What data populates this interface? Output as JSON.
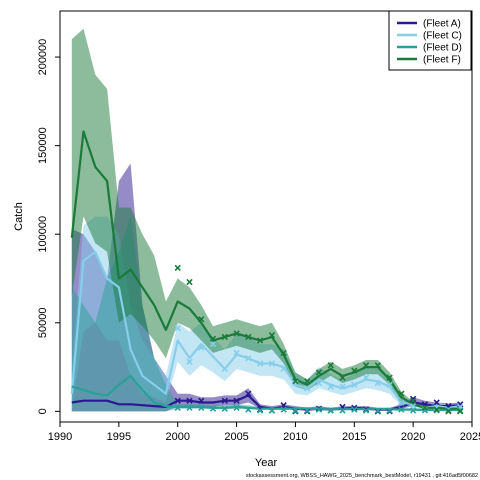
{
  "chart_data": {
    "type": "line",
    "xlabel": "Year",
    "ylabel": "Catch",
    "xlim": [
      1990,
      2025
    ],
    "ylim": [
      -6000,
      226000
    ],
    "xticks": [
      1990,
      1995,
      2000,
      2005,
      2010,
      2015,
      2020,
      2025
    ],
    "yticks": [
      0,
      50000,
      100000,
      150000,
      200000
    ],
    "legend_position": "top-right",
    "footnote": "stockassessment.org, WBSS_HAWG_2025_benchmark_bestModel, r19431 , git:416ad5f00682",
    "series": [
      {
        "name": "(Fleet A)",
        "color": "#2b1a8f",
        "x": [
          1991,
          1992,
          1993,
          1994,
          1995,
          1996,
          1997,
          1998,
          1999,
          2000,
          2001,
          2002,
          2003,
          2004,
          2005,
          2006,
          2007,
          2008,
          2009,
          2010,
          2011,
          2012,
          2013,
          2014,
          2015,
          2016,
          2017,
          2018,
          2019,
          2020,
          2021,
          2022,
          2023,
          2024
        ],
        "values": [
          5000,
          6000,
          6000,
          6000,
          4000,
          4000,
          3500,
          3000,
          2500,
          6000,
          6000,
          5000,
          5000,
          6000,
          6000,
          9000,
          2500,
          1500,
          2500,
          1500,
          1000,
          1500,
          1000,
          1500,
          2000,
          1500,
          1000,
          1000,
          2500,
          5000,
          4000,
          3000,
          3000,
          3500
        ],
        "lower": [
          0,
          0,
          0,
          0,
          0,
          0,
          0,
          0,
          0,
          3000,
          3000,
          2500,
          2500,
          3500,
          3500,
          5000,
          1500,
          800,
          1500,
          800,
          500,
          800,
          500,
          800,
          1000,
          800,
          500,
          500,
          1500,
          3000,
          2500,
          2000,
          2000,
          2000
        ],
        "upper": [
          103000,
          100000,
          90000,
          75000,
          130000,
          140000,
          60000,
          30000,
          20000,
          10000,
          10000,
          8000,
          8000,
          9000,
          9000,
          13000,
          4000,
          3000,
          4000,
          3000,
          2000,
          3000,
          2000,
          3000,
          3000,
          3000,
          2000,
          2000,
          4000,
          8000,
          6000,
          5000,
          4500,
          5000
        ],
        "observed_x": [
          2000,
          2001,
          2002,
          2004,
          2005,
          2006,
          2007,
          2008,
          2009,
          2010,
          2011,
          2012,
          2013,
          2014,
          2015,
          2016,
          2017,
          2018,
          2019,
          2020,
          2021,
          2022,
          2023,
          2024
        ],
        "observed": [
          6000,
          6000,
          6000,
          6000,
          6000,
          10000,
          1000,
          500,
          3500,
          0,
          0,
          1500,
          500,
          2500,
          2000,
          1000,
          0,
          0,
          5000,
          7000,
          4000,
          5000,
          3000,
          4000
        ]
      },
      {
        "name": "(Fleet C)",
        "color": "#87ceeb",
        "x": [
          1991,
          1992,
          1993,
          1994,
          1995,
          1996,
          1997,
          1998,
          1999,
          2000,
          2001,
          2002,
          2003,
          2004,
          2005,
          2006,
          2007,
          2008,
          2009,
          2010,
          2011,
          2012,
          2013,
          2014,
          2015,
          2016,
          2017,
          2018,
          2019,
          2020,
          2021,
          2022,
          2023,
          2024
        ],
        "values": [
          10000,
          85000,
          90000,
          75000,
          70000,
          35000,
          20000,
          15000,
          10000,
          40000,
          30000,
          38000,
          31000,
          24000,
          32000,
          30000,
          27000,
          27000,
          25000,
          15000,
          13000,
          18000,
          15000,
          13000,
          15000,
          18000,
          17000,
          14000,
          5000,
          4000,
          2000,
          3000,
          2000,
          3000
        ],
        "lower": [
          0,
          45000,
          50000,
          40000,
          40000,
          20000,
          10000,
          8000,
          5000,
          28000,
          20000,
          26000,
          22000,
          17000,
          24000,
          22000,
          20000,
          20000,
          18000,
          10000,
          9000,
          13000,
          11000,
          9000,
          11000,
          13000,
          12000,
          10000,
          3000,
          2500,
          1200,
          2000,
          1200,
          2000
        ],
        "upper": [
          25000,
          105000,
          110000,
          110000,
          100000,
          60000,
          40000,
          30000,
          20000,
          50000,
          45000,
          50000,
          42000,
          35000,
          44000,
          42000,
          38000,
          38000,
          35000,
          22000,
          18000,
          25000,
          21000,
          18000,
          21000,
          25000,
          24000,
          20000,
          8000,
          6000,
          3500,
          5000,
          3500,
          4500
        ],
        "observed_x": [
          2000,
          2001,
          2002,
          2003,
          2004,
          2005,
          2006,
          2007,
          2008,
          2009,
          2010,
          2011,
          2012,
          2013,
          2014,
          2015,
          2016,
          2017,
          2018,
          2019,
          2020,
          2021,
          2022,
          2023,
          2024
        ],
        "observed": [
          47000,
          28000,
          36000,
          38000,
          24000,
          33000,
          30000,
          27000,
          27000,
          24000,
          16000,
          13000,
          16000,
          14000,
          14000,
          15000,
          19000,
          16000,
          15000,
          5000,
          3000,
          1500,
          2000,
          1000,
          2500
        ]
      },
      {
        "name": "(Fleet D)",
        "color": "#2aa198",
        "x": [
          1991,
          1992,
          1993,
          1994,
          1995,
          1996,
          1997,
          1998,
          1999,
          2000,
          2001,
          2002,
          2003,
          2004,
          2005,
          2006,
          2007,
          2008,
          2009,
          2010,
          2011,
          2012,
          2013,
          2014,
          2015,
          2016,
          2017,
          2018,
          2019,
          2020,
          2021,
          2022,
          2023,
          2024
        ],
        "values": [
          14000,
          12000,
          10000,
          9000,
          15000,
          20000,
          12000,
          5000,
          3000,
          2500,
          2500,
          2500,
          2000,
          2000,
          2500,
          2000,
          1500,
          1500,
          1500,
          1500,
          1500,
          1200,
          1200,
          1200,
          1200,
          1200,
          1200,
          1200,
          1000,
          1000,
          800,
          800,
          800,
          800
        ],
        "lower": [
          0,
          0,
          0,
          0,
          0,
          0,
          0,
          0,
          0,
          1500,
          1500,
          1500,
          1200,
          1200,
          1500,
          1200,
          900,
          900,
          900,
          900,
          900,
          700,
          700,
          700,
          700,
          700,
          700,
          700,
          600,
          600,
          500,
          500,
          500,
          500
        ],
        "upper": [
          70000,
          60000,
          50000,
          75000,
          90000,
          110000,
          60000,
          30000,
          15000,
          4000,
          4000,
          4000,
          3500,
          3500,
          4000,
          3500,
          2500,
          2500,
          2500,
          2500,
          2500,
          2000,
          2000,
          2000,
          2000,
          2000,
          2000,
          2000,
          1800,
          1800,
          1500,
          1500,
          1500,
          1500
        ],
        "observed_x": [
          2000,
          2001,
          2002,
          2003,
          2004,
          2005,
          2006,
          2007,
          2008,
          2009,
          2010,
          2011,
          2012,
          2013,
          2014,
          2015,
          2016,
          2017,
          2018,
          2019,
          2020,
          2021,
          2022,
          2023,
          2024
        ],
        "observed": [
          2000,
          2000,
          2000,
          1500,
          1500,
          2000,
          1000,
          500,
          500,
          1000,
          500,
          500,
          1000,
          500,
          500,
          1000,
          500,
          500,
          500,
          1000,
          500,
          500,
          500,
          500,
          500
        ]
      },
      {
        "name": "(Fleet F)",
        "color": "#1a7a3a",
        "x": [
          1991,
          1992,
          1993,
          1994,
          1995,
          1996,
          1997,
          1998,
          1999,
          2000,
          2001,
          2002,
          2003,
          2004,
          2005,
          2006,
          2007,
          2008,
          2009,
          2010,
          2011,
          2012,
          2013,
          2014,
          2015,
          2016,
          2017,
          2018,
          2019,
          2020,
          2021,
          2022,
          2023,
          2024
        ],
        "values": [
          98000,
          158000,
          138000,
          130000,
          75000,
          80000,
          70000,
          60000,
          46000,
          62000,
          58000,
          50000,
          40000,
          42000,
          44000,
          42000,
          40000,
          42000,
          32000,
          18000,
          15000,
          20000,
          24000,
          20000,
          22000,
          25000,
          25000,
          18000,
          8000,
          4000,
          2000,
          2000,
          1500,
          1500
        ],
        "lower": [
          65000,
          110000,
          95000,
          90000,
          50000,
          55000,
          48000,
          40000,
          30000,
          50000,
          47000,
          40000,
          33000,
          35000,
          37000,
          35000,
          33000,
          35000,
          27000,
          14000,
          12000,
          16000,
          20000,
          16000,
          18000,
          21000,
          21000,
          15000,
          6000,
          3000,
          1500,
          1500,
          1000,
          1000
        ],
        "upper": [
          210000,
          216000,
          190000,
          182000,
          115000,
          115000,
          100000,
          88000,
          62000,
          75000,
          70000,
          60000,
          48000,
          50000,
          52000,
          50000,
          48000,
          50000,
          38000,
          22000,
          18000,
          24000,
          28000,
          24000,
          26000,
          29000,
          29000,
          22000,
          11000,
          5500,
          3000,
          3000,
          2200,
          2200
        ],
        "observed_x": [
          2000,
          2001,
          2002,
          2003,
          2004,
          2005,
          2006,
          2007,
          2008,
          2009,
          2010,
          2011,
          2012,
          2013,
          2014,
          2015,
          2016,
          2017,
          2018,
          2019,
          2020,
          2021,
          2022,
          2023,
          2024
        ],
        "observed": [
          81000,
          73000,
          52000,
          41000,
          42000,
          44000,
          42000,
          40000,
          43000,
          33000,
          17000,
          17000,
          22000,
          26000,
          19000,
          23000,
          26000,
          26000,
          19000,
          10000,
          6000,
          2000,
          1000,
          0,
          0
        ]
      }
    ]
  }
}
